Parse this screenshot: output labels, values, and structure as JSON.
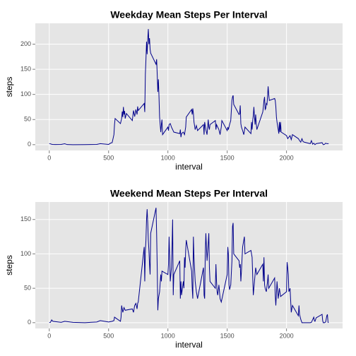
{
  "chart_data": [
    {
      "type": "line",
      "title": "Weekday Mean Steps Per Interval",
      "xlabel": "interval",
      "ylabel": "steps",
      "color": "#00008b",
      "grid": true,
      "xlim": [
        -117.75,
        2472.75
      ],
      "xticks": [
        0,
        500,
        1000,
        1500,
        2000
      ],
      "ylim": [
        -11.5,
        241.5
      ],
      "yticks": [
        0,
        50,
        100,
        150,
        200
      ],
      "x": [
        0,
        25,
        50,
        100,
        130,
        150,
        200,
        300,
        400,
        430,
        500,
        520,
        530,
        545,
        550,
        555,
        600,
        610,
        615,
        620,
        625,
        630,
        635,
        640,
        650,
        700,
        705,
        710,
        720,
        730,
        740,
        745,
        750,
        800,
        805,
        810,
        815,
        820,
        825,
        830,
        835,
        840,
        845,
        850,
        855,
        900,
        905,
        910,
        915,
        920,
        925,
        930,
        935,
        940,
        945,
        950,
        955,
        1000,
        1005,
        1010,
        1020,
        1030,
        1040,
        1050,
        1100,
        1105,
        1110,
        1115,
        1130,
        1140,
        1150,
        1155,
        1200,
        1205,
        1210,
        1215,
        1220,
        1230,
        1240,
        1250,
        1300,
        1305,
        1310,
        1320,
        1330,
        1340,
        1345,
        1350,
        1355,
        1400,
        1405,
        1410,
        1420,
        1430,
        1440,
        1450,
        1455,
        1500,
        1505,
        1510,
        1520,
        1530,
        1540,
        1545,
        1550,
        1555,
        1600,
        1605,
        1610,
        1615,
        1620,
        1630,
        1640,
        1650,
        1700,
        1705,
        1710,
        1715,
        1720,
        1725,
        1730,
        1735,
        1740,
        1745,
        1750,
        1800,
        1805,
        1810,
        1815,
        1820,
        1825,
        1830,
        1835,
        1840,
        1845,
        1850,
        1855,
        1900,
        1905,
        1910,
        1915,
        1920,
        1930,
        1935,
        1940,
        1945,
        1950,
        1955,
        2000,
        2010,
        2030,
        2040,
        2050,
        2100,
        2110,
        2120,
        2130,
        2140,
        2150,
        2200,
        2210,
        2220,
        2230,
        2240,
        2250,
        2300,
        2310,
        2320,
        2330,
        2340,
        2355
      ],
      "values": [
        2.3,
        0.4,
        0.2,
        0.4,
        1.8,
        0.2,
        0,
        0.1,
        0.4,
        2,
        0.5,
        3.5,
        4,
        20,
        40,
        52,
        42,
        52,
        66,
        55,
        75,
        60,
        67,
        52,
        62,
        48,
        58,
        68,
        56,
        70,
        60,
        76,
        68,
        82,
        65,
        140,
        170,
        205,
        180,
        210,
        230,
        200,
        212,
        190,
        182,
        160,
        170,
        140,
        105,
        130,
        95,
        55,
        40,
        25,
        40,
        50,
        20,
        35,
        28,
        40,
        42,
        35,
        30,
        25,
        22,
        30,
        15,
        22,
        25,
        20,
        35,
        55,
        70,
        60,
        72,
        62,
        45,
        30,
        38,
        28,
        40,
        20,
        45,
        30,
        20,
        50,
        35,
        30,
        40,
        48,
        30,
        40,
        35,
        30,
        20,
        35,
        48,
        28,
        35,
        30,
        40,
        48,
        88,
        95,
        98,
        80,
        60,
        62,
        78,
        42,
        35,
        28,
        20,
        35,
        22,
        45,
        30,
        48,
        58,
        75,
        55,
        40,
        60,
        42,
        30,
        65,
        75,
        88,
        95,
        70,
        72,
        82,
        80,
        95,
        116,
        100,
        88,
        92,
        88,
        76,
        55,
        45,
        30,
        22,
        45,
        25,
        45,
        25,
        18,
        12,
        18,
        10,
        20,
        12,
        8,
        5,
        12,
        6,
        5,
        2,
        8,
        1,
        3,
        0,
        2,
        4,
        0,
        0.5,
        3,
        2,
        2
      ]
    },
    {
      "type": "line",
      "title": "Weekend Mean Steps Per Interval",
      "xlabel": "interval",
      "ylabel": "steps",
      "color": "#00008b",
      "grid": true,
      "xlim": [
        -117.75,
        2472.75
      ],
      "xticks": [
        0,
        500,
        1000,
        1500,
        2000
      ],
      "ylim": [
        -8.4,
        175.4
      ],
      "yticks": [
        0,
        50,
        100,
        150
      ],
      "x": [
        0,
        10,
        20,
        30,
        100,
        130,
        200,
        300,
        400,
        430,
        500,
        530,
        545,
        550,
        600,
        605,
        610,
        620,
        630,
        640,
        700,
        710,
        720,
        730,
        740,
        745,
        750,
        800,
        805,
        810,
        815,
        820,
        825,
        830,
        835,
        840,
        845,
        850,
        855,
        900,
        905,
        910,
        915,
        920,
        930,
        940,
        945,
        950,
        1000,
        1005,
        1010,
        1015,
        1020,
        1030,
        1035,
        1040,
        1045,
        1050,
        1100,
        1105,
        1110,
        1115,
        1130,
        1135,
        1140,
        1145,
        1150,
        1155,
        1200,
        1205,
        1210,
        1215,
        1220,
        1230,
        1240,
        1250,
        1300,
        1305,
        1310,
        1315,
        1320,
        1330,
        1340,
        1345,
        1350,
        1355,
        1400,
        1405,
        1410,
        1415,
        1420,
        1430,
        1440,
        1450,
        1500,
        1505,
        1510,
        1515,
        1520,
        1530,
        1540,
        1545,
        1550,
        1555,
        1600,
        1605,
        1610,
        1615,
        1620,
        1630,
        1640,
        1645,
        1650,
        1700,
        1710,
        1720,
        1730,
        1740,
        1750,
        1800,
        1805,
        1810,
        1815,
        1820,
        1830,
        1840,
        1845,
        1850,
        1900,
        1905,
        1910,
        1920,
        1930,
        1940,
        1950,
        2000,
        2005,
        2010,
        2015,
        2020,
        2030,
        2040,
        2050,
        2100,
        2105,
        2110,
        2120,
        2130,
        2200,
        2210,
        2230,
        2235,
        2240,
        2250,
        2300,
        2305,
        2310,
        2320,
        2330,
        2340,
        2345,
        2350,
        2355
      ],
      "values": [
        0.2,
        0.5,
        4,
        2,
        0.5,
        2,
        0.5,
        0,
        1,
        3,
        1,
        2,
        3,
        8,
        2,
        8,
        25,
        15,
        22,
        18,
        20,
        15,
        25,
        28,
        20,
        28,
        30,
        110,
        60,
        105,
        120,
        150,
        165,
        145,
        120,
        105,
        85,
        70,
        130,
        167,
        130,
        80,
        18,
        35,
        45,
        70,
        60,
        75,
        70,
        85,
        125,
        95,
        60,
        80,
        110,
        150,
        40,
        70,
        90,
        35,
        60,
        40,
        60,
        50,
        95,
        80,
        105,
        120,
        75,
        50,
        35,
        125,
        95,
        60,
        45,
        35,
        80,
        40,
        35,
        100,
        130,
        90,
        115,
        130,
        80,
        60,
        50,
        85,
        60,
        45,
        40,
        55,
        35,
        30,
        70,
        110,
        100,
        55,
        48,
        55,
        90,
        140,
        145,
        100,
        90,
        80,
        85,
        60,
        75,
        110,
        120,
        125,
        100,
        105,
        95,
        40,
        60,
        80,
        70,
        85,
        60,
        95,
        55,
        50,
        45,
        60,
        70,
        50,
        65,
        40,
        25,
        60,
        35,
        50,
        38,
        45,
        88,
        80,
        70,
        45,
        50,
        15,
        25,
        10,
        25,
        12,
        5,
        0,
        0,
        0.5,
        8,
        3,
        2,
        7,
        12,
        3,
        0,
        0,
        1,
        10,
        12,
        0.5,
        0
      ]
    }
  ]
}
